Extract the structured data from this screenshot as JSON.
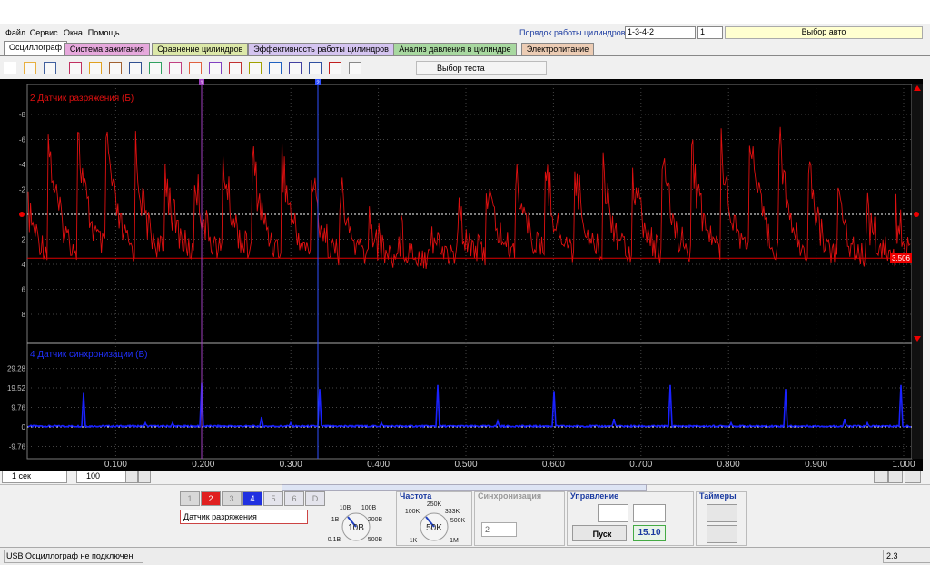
{
  "menu": [
    "Файл",
    "Сервис",
    "Окна",
    "Помощь"
  ],
  "cylinder_order": {
    "label": "Порядок работы цилиндров",
    "value": "1-3-4-2",
    "start": "1"
  },
  "car_select": "Выбор авто",
  "tabs": [
    "Осциллограф",
    "Система зажигания",
    "Сравнение цилиндров",
    "Эффективность работы цилиндров",
    "Анализ давления в цилиндре",
    "Электропитание"
  ],
  "test_select": "Выбор теста",
  "scope": {
    "cursors": [
      "1",
      "2"
    ],
    "channel1": {
      "title": "2 Датчик разряжения (Б)",
      "yticks": [
        -8,
        -6,
        -4,
        -2,
        2,
        4,
        6,
        8
      ],
      "level": {
        "value": 3.506,
        "label": "3.506"
      }
    },
    "channel2": {
      "title": "4 Датчик синхронизации (В)",
      "yticks": [
        29.28,
        19.52,
        9.76,
        0,
        -9.76
      ]
    },
    "xticks": [
      {
        "value": 0.1,
        "label": "0.100"
      },
      {
        "value": 0.2,
        "label": "0.200"
      },
      {
        "value": 0.3,
        "label": "0.300"
      },
      {
        "value": 0.4,
        "label": "0.400"
      },
      {
        "value": 0.5,
        "label": "0.500"
      },
      {
        "value": 0.6,
        "label": "0.600"
      },
      {
        "value": 0.7,
        "label": "0.700"
      },
      {
        "value": 0.8,
        "label": "0.800"
      },
      {
        "value": 0.9,
        "label": "0.900"
      },
      {
        "value": 1,
        "label": "1.000"
      }
    ]
  },
  "time_base": "1 сек",
  "points": "100",
  "panel": {
    "channels": [
      "1",
      "2",
      "3",
      "4",
      "5",
      "6",
      "D"
    ],
    "sensor": "Датчик разряжения",
    "range_knob": {
      "labels": [
        "10В",
        "100В",
        "1В",
        "200В",
        "0.1В",
        "500В"
      ],
      "value": "10В"
    },
    "frequency": {
      "title": "Частота",
      "labels": [
        "250K",
        "100K",
        "333K",
        "500K",
        "1K",
        "1M"
      ],
      "value": "50K"
    },
    "sync": {
      "title": "Синхронизация",
      "channel": "2"
    },
    "control": {
      "title": "Управление",
      "start": "Пуск",
      "time": "15.10"
    },
    "timers": {
      "title": "Таймеры"
    }
  },
  "status": {
    "message": "USB Осциллограф не подключен",
    "version": "2.3"
  }
}
